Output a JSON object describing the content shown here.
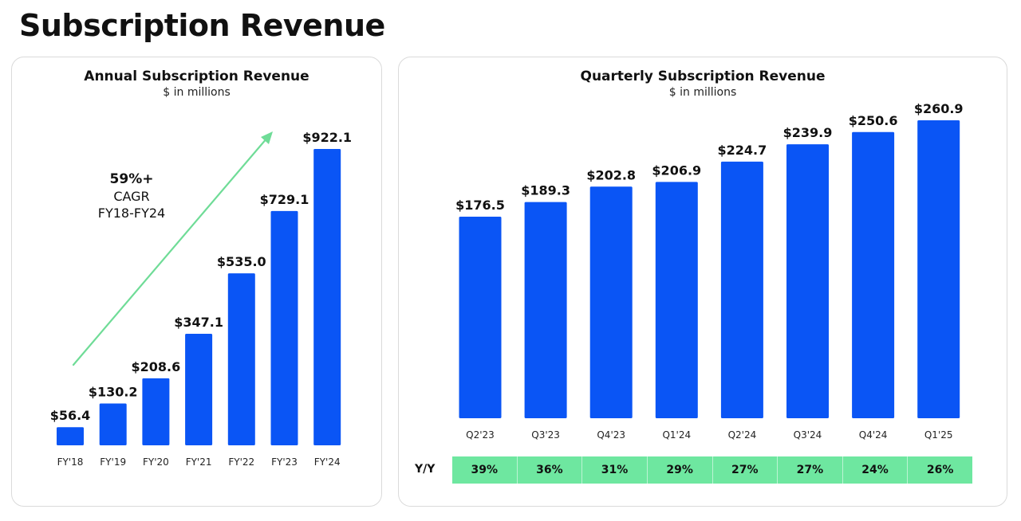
{
  "page": {
    "title": "Subscription Revenue"
  },
  "annual": {
    "title": "Annual Subscription Revenue",
    "subtitle": "$ in millions",
    "cagr": {
      "value": "59%+",
      "label": "CAGR",
      "period": "FY18-FY24"
    }
  },
  "quarterly": {
    "title": "Quarterly Subscription Revenue",
    "subtitle": "$ in millions",
    "yoy_label": "Y/Y",
    "yoy": [
      "39%",
      "36%",
      "31%",
      "29%",
      "27%",
      "27%",
      "24%",
      "26%"
    ]
  },
  "colors": {
    "bar": "#0a55f5",
    "arrow": "#6fdc97",
    "yoy_fill": "#6ee7a0"
  },
  "chart_data": [
    {
      "type": "bar",
      "title": "Annual Subscription Revenue",
      "subtitle": "$ in millions",
      "categories": [
        "FY'18",
        "FY'19",
        "FY'20",
        "FY'21",
        "FY'22",
        "FY'23",
        "FY'24"
      ],
      "values": [
        56.4,
        130.2,
        208.6,
        347.1,
        535.0,
        729.1,
        922.1
      ],
      "value_labels": [
        "$56.4",
        "$130.2",
        "$208.6",
        "$347.1",
        "$535.0",
        "$729.1",
        "$922.1"
      ],
      "ylim": [
        0,
        922.1
      ],
      "grid": false,
      "annotation": "59%+ CAGR FY18-FY24"
    },
    {
      "type": "bar",
      "title": "Quarterly Subscription Revenue",
      "subtitle": "$ in millions",
      "categories": [
        "Q2'23",
        "Q3'23",
        "Q4'23",
        "Q1'24",
        "Q2'24",
        "Q3'24",
        "Q4'24",
        "Q1'25"
      ],
      "values": [
        176.5,
        189.3,
        202.8,
        206.9,
        224.7,
        239.9,
        250.6,
        260.9
      ],
      "value_labels": [
        "$176.5",
        "$189.3",
        "$202.8",
        "$206.9",
        "$224.7",
        "$239.9",
        "$250.6",
        "$260.9"
      ],
      "ylim": [
        0,
        260.9
      ],
      "grid": false
    }
  ]
}
